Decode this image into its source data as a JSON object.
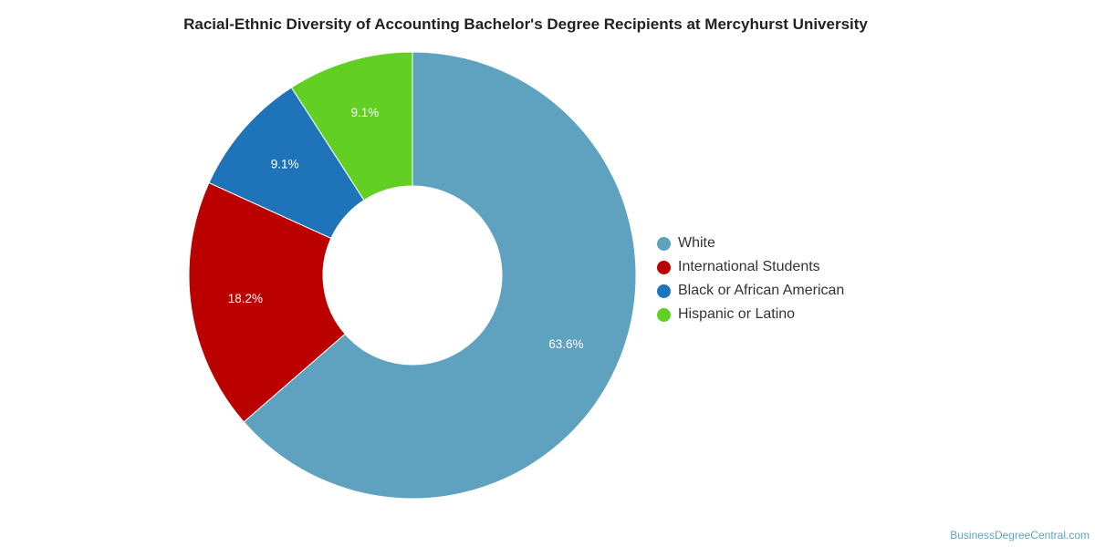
{
  "chart_data": {
    "type": "pie",
    "title": "Racial-Ethnic Diversity of Accounting Bachelor's Degree Recipients at Mercyhurst University",
    "categories": [
      "White",
      "International Students",
      "Black or African American",
      "Hispanic or Latino"
    ],
    "values": [
      63.6,
      18.2,
      9.1,
      9.1
    ],
    "value_labels": [
      "63.6%",
      "18.2%",
      "9.1%",
      "9.1%"
    ],
    "colors": [
      "#5ea2bf",
      "#bb0000",
      "#1f73b8",
      "#62cf23"
    ],
    "donut": true,
    "legend_position": "right"
  },
  "watermark": "BusinessDegreeCentral.com"
}
